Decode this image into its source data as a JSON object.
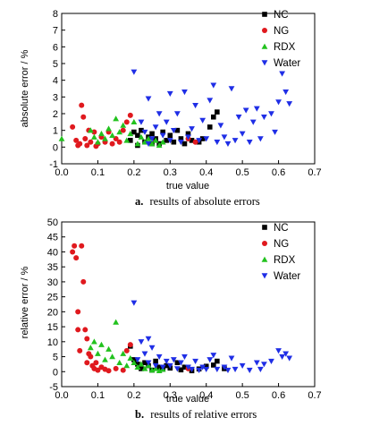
{
  "chart_data": [
    {
      "type": "scatter",
      "caption_letter": "a.",
      "caption_text": "results of absolute errors",
      "xlabel": "true value",
      "ylabel": "absolute error / %",
      "xlim": [
        0.0,
        0.7
      ],
      "ylim": [
        -1,
        8
      ],
      "xticks": [
        "0.0",
        "0.1",
        "0.2",
        "0.3",
        "0.4",
        "0.5",
        "0.6",
        "0.7"
      ],
      "yticks": [
        "-1",
        "0",
        "1",
        "2",
        "3",
        "4",
        "5",
        "6",
        "7",
        "8"
      ],
      "legend_position": "top-right",
      "series": [
        {
          "name": "NC",
          "color": "#000000",
          "marker": "square",
          "points": [
            [
              0.19,
              0.4
            ],
            [
              0.2,
              0.9
            ],
            [
              0.21,
              0.7
            ],
            [
              0.22,
              1.0
            ],
            [
              0.23,
              0.3
            ],
            [
              0.24,
              0.6
            ],
            [
              0.25,
              0.8
            ],
            [
              0.26,
              0.5
            ],
            [
              0.27,
              0.2
            ],
            [
              0.28,
              0.9
            ],
            [
              0.29,
              0.4
            ],
            [
              0.3,
              0.7
            ],
            [
              0.31,
              0.3
            ],
            [
              0.32,
              1.0
            ],
            [
              0.33,
              0.5
            ],
            [
              0.34,
              0.2
            ],
            [
              0.35,
              0.8
            ],
            [
              0.36,
              0.4
            ],
            [
              0.38,
              0.3
            ],
            [
              0.39,
              0.5
            ],
            [
              0.41,
              1.2
            ],
            [
              0.42,
              1.8
            ],
            [
              0.43,
              2.1
            ],
            [
              0.21,
              0.1
            ],
            [
              0.25,
              0.2
            ]
          ]
        },
        {
          "name": "NG",
          "color": "#e0191e",
          "marker": "circle",
          "points": [
            [
              0.03,
              1.2
            ],
            [
              0.04,
              0.4
            ],
            [
              0.05,
              0.2
            ],
            [
              0.055,
              2.5
            ],
            [
              0.06,
              1.8
            ],
            [
              0.065,
              0.5
            ],
            [
              0.07,
              0.1
            ],
            [
              0.08,
              0.3
            ],
            [
              0.09,
              0.9
            ],
            [
              0.1,
              0.2
            ],
            [
              0.11,
              0.6
            ],
            [
              0.12,
              0.3
            ],
            [
              0.13,
              0.9
            ],
            [
              0.14,
              0.2
            ],
            [
              0.15,
              0.5
            ],
            [
              0.16,
              0.3
            ],
            [
              0.17,
              1.0
            ],
            [
              0.18,
              1.5
            ],
            [
              0.19,
              1.9
            ],
            [
              0.35,
              0.5
            ],
            [
              0.37,
              0.3
            ],
            [
              0.045,
              0.1
            ],
            [
              0.075,
              1.0
            ],
            [
              0.095,
              0.05
            ]
          ]
        },
        {
          "name": "RDX",
          "color": "#22c21e",
          "marker": "triangle-up",
          "points": [
            [
              0.0,
              0.5
            ],
            [
              0.08,
              1.0
            ],
            [
              0.09,
              0.6
            ],
            [
              0.1,
              0.3
            ],
            [
              0.11,
              0.8
            ],
            [
              0.12,
              0.5
            ],
            [
              0.13,
              1.1
            ],
            [
              0.14,
              0.7
            ],
            [
              0.15,
              1.7
            ],
            [
              0.16,
              0.9
            ],
            [
              0.17,
              1.3
            ],
            [
              0.18,
              0.4
            ],
            [
              0.19,
              0.8
            ],
            [
              0.2,
              1.5
            ],
            [
              0.21,
              0.2
            ],
            [
              0.22,
              0.6
            ],
            [
              0.23,
              0.3
            ],
            [
              0.24,
              0.5
            ],
            [
              0.25,
              0.2
            ],
            [
              0.26,
              0.4
            ],
            [
              0.27,
              0.1
            ],
            [
              0.28,
              0.3
            ]
          ]
        },
        {
          "name": "Water",
          "color": "#1f2ee6",
          "marker": "triangle-down",
          "points": [
            [
              0.2,
              4.5
            ],
            [
              0.22,
              1.5
            ],
            [
              0.23,
              0.9
            ],
            [
              0.24,
              2.9
            ],
            [
              0.25,
              0.5
            ],
            [
              0.26,
              1.2
            ],
            [
              0.27,
              2.0
            ],
            [
              0.28,
              0.7
            ],
            [
              0.29,
              1.5
            ],
            [
              0.3,
              0.4
            ],
            [
              0.31,
              1.0
            ],
            [
              0.32,
              2.0
            ],
            [
              0.33,
              0.3
            ],
            [
              0.34,
              3.3
            ],
            [
              0.35,
              0.6
            ],
            [
              0.36,
              1.1
            ],
            [
              0.37,
              2.5
            ],
            [
              0.38,
              0.4
            ],
            [
              0.39,
              1.6
            ],
            [
              0.4,
              0.5
            ],
            [
              0.41,
              2.8
            ],
            [
              0.42,
              3.7
            ],
            [
              0.43,
              0.3
            ],
            [
              0.44,
              1.3
            ],
            [
              0.45,
              0.6
            ],
            [
              0.46,
              0.2
            ],
            [
              0.47,
              3.5
            ],
            [
              0.48,
              0.4
            ],
            [
              0.49,
              1.8
            ],
            [
              0.5,
              0.8
            ],
            [
              0.51,
              2.2
            ],
            [
              0.52,
              0.3
            ],
            [
              0.53,
              1.5
            ],
            [
              0.54,
              2.3
            ],
            [
              0.55,
              0.5
            ],
            [
              0.56,
              1.8
            ],
            [
              0.58,
              2.0
            ],
            [
              0.59,
              0.9
            ],
            [
              0.6,
              2.7
            ],
            [
              0.61,
              4.4
            ],
            [
              0.62,
              3.3
            ],
            [
              0.63,
              2.6
            ],
            [
              0.24,
              0.2
            ],
            [
              0.3,
              3.2
            ]
          ]
        }
      ]
    },
    {
      "type": "scatter",
      "caption_letter": "b.",
      "caption_text": "results of relative errors",
      "xlabel": "true value",
      "ylabel": "relative error / %",
      "xlim": [
        0.0,
        0.7
      ],
      "ylim": [
        -5,
        50
      ],
      "xticks": [
        "0.0",
        "0.1",
        "0.2",
        "0.3",
        "0.4",
        "0.5",
        "0.6",
        "0.7"
      ],
      "yticks": [
        "-5",
        "0",
        "5",
        "10",
        "15",
        "20",
        "25",
        "30",
        "35",
        "40",
        "45",
        "50"
      ],
      "legend_position": "top-right",
      "series": [
        {
          "name": "NC",
          "color": "#000000",
          "marker": "square",
          "points": [
            [
              0.19,
              8.5
            ],
            [
              0.2,
              4.0
            ],
            [
              0.21,
              2.5
            ],
            [
              0.22,
              1.0
            ],
            [
              0.23,
              3.0
            ],
            [
              0.24,
              2.0
            ],
            [
              0.25,
              0.5
            ],
            [
              0.26,
              3.5
            ],
            [
              0.27,
              1.5
            ],
            [
              0.28,
              0.8
            ],
            [
              0.29,
              2.0
            ],
            [
              0.3,
              1.2
            ],
            [
              0.32,
              3.0
            ],
            [
              0.33,
              0.6
            ],
            [
              0.34,
              1.5
            ],
            [
              0.36,
              0.3
            ],
            [
              0.38,
              0.9
            ],
            [
              0.4,
              1.8
            ],
            [
              0.42,
              2.2
            ],
            [
              0.43,
              3.5
            ],
            [
              0.45,
              1.0
            ]
          ]
        },
        {
          "name": "NG",
          "color": "#e0191e",
          "marker": "circle",
          "points": [
            [
              0.03,
              40
            ],
            [
              0.035,
              42
            ],
            [
              0.04,
              38
            ],
            [
              0.045,
              20
            ],
            [
              0.05,
              7
            ],
            [
              0.055,
              42
            ],
            [
              0.06,
              30
            ],
            [
              0.065,
              14
            ],
            [
              0.07,
              11
            ],
            [
              0.075,
              6
            ],
            [
              0.08,
              5
            ],
            [
              0.085,
              2
            ],
            [
              0.09,
              1
            ],
            [
              0.095,
              3
            ],
            [
              0.1,
              0.5
            ],
            [
              0.11,
              1.5
            ],
            [
              0.12,
              0.8
            ],
            [
              0.13,
              0.3
            ],
            [
              0.15,
              1.0
            ],
            [
              0.17,
              0.5
            ],
            [
              0.18,
              7.0
            ],
            [
              0.19,
              9.0
            ],
            [
              0.35,
              1.0
            ],
            [
              0.045,
              14
            ],
            [
              0.07,
              3
            ]
          ]
        },
        {
          "name": "RDX",
          "color": "#22c21e",
          "marker": "triangle-up",
          "points": [
            [
              0.08,
              8.0
            ],
            [
              0.09,
              10.0
            ],
            [
              0.1,
              6.0
            ],
            [
              0.11,
              9.0
            ],
            [
              0.12,
              4.0
            ],
            [
              0.13,
              7.5
            ],
            [
              0.14,
              5.0
            ],
            [
              0.15,
              16.5
            ],
            [
              0.16,
              3.0
            ],
            [
              0.17,
              6.0
            ],
            [
              0.18,
              2.0
            ],
            [
              0.19,
              4.5
            ],
            [
              0.2,
              3.0
            ],
            [
              0.21,
              1.5
            ],
            [
              0.22,
              2.5
            ],
            [
              0.23,
              1.0
            ],
            [
              0.24,
              2.0
            ],
            [
              0.25,
              0.5
            ],
            [
              0.26,
              1.0
            ],
            [
              0.27,
              0.3
            ],
            [
              0.28,
              0.8
            ]
          ]
        },
        {
          "name": "Water",
          "color": "#1f2ee6",
          "marker": "triangle-down",
          "points": [
            [
              0.2,
              23.0
            ],
            [
              0.21,
              4.0
            ],
            [
              0.22,
              10.0
            ],
            [
              0.23,
              6.0
            ],
            [
              0.24,
              3.0
            ],
            [
              0.25,
              8.0
            ],
            [
              0.26,
              2.0
            ],
            [
              0.27,
              5.0
            ],
            [
              0.28,
              1.5
            ],
            [
              0.29,
              3.5
            ],
            [
              0.3,
              2.0
            ],
            [
              0.31,
              4.0
            ],
            [
              0.32,
              1.0
            ],
            [
              0.33,
              3.0
            ],
            [
              0.34,
              5.0
            ],
            [
              0.35,
              1.5
            ],
            [
              0.36,
              0.8
            ],
            [
              0.37,
              3.5
            ],
            [
              0.38,
              0.5
            ],
            [
              0.39,
              1.5
            ],
            [
              0.4,
              0.8
            ],
            [
              0.41,
              4.0
            ],
            [
              0.42,
              5.5
            ],
            [
              0.43,
              0.8
            ],
            [
              0.45,
              1.5
            ],
            [
              0.46,
              0.5
            ],
            [
              0.47,
              4.5
            ],
            [
              0.48,
              0.8
            ],
            [
              0.5,
              2.0
            ],
            [
              0.52,
              0.5
            ],
            [
              0.54,
              3.0
            ],
            [
              0.55,
              0.8
            ],
            [
              0.56,
              2.5
            ],
            [
              0.58,
              3.5
            ],
            [
              0.6,
              7.0
            ],
            [
              0.61,
              5.0
            ],
            [
              0.62,
              6.0
            ],
            [
              0.63,
              4.5
            ],
            [
              0.24,
              11.0
            ]
          ]
        }
      ]
    }
  ]
}
